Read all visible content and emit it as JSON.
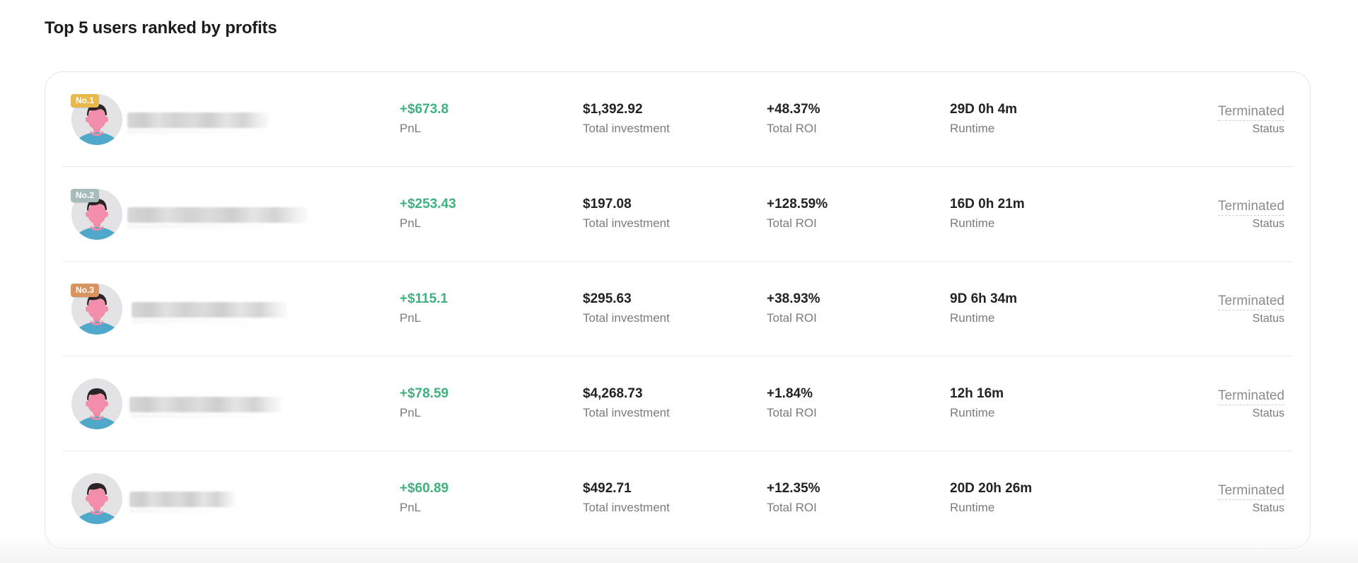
{
  "page": {
    "title": "Top 5 users ranked by profits"
  },
  "labels": {
    "pnl": "PnL",
    "investment": "Total investment",
    "roi": "Total ROI",
    "runtime": "Runtime",
    "status": "Status"
  },
  "colors": {
    "profit_green": "#3fb17f",
    "rank_gold": "#e9b94d",
    "rank_silver": "#a8bcbc",
    "rank_bronze": "#d8935e"
  },
  "users": [
    {
      "rank_badge": "No.1",
      "username_hidden": true,
      "pnl": "+$673.8",
      "investment": "$1,392.92",
      "roi": "+48.37%",
      "runtime": "29D 0h 4m",
      "status": "Terminated"
    },
    {
      "rank_badge": "No.2",
      "username_hidden": true,
      "pnl": "+$253.43",
      "investment": "$197.08",
      "roi": "+128.59%",
      "runtime": "16D 0h 21m",
      "status": "Terminated"
    },
    {
      "rank_badge": "No.3",
      "username_hidden": true,
      "pnl": "+$115.1",
      "investment": "$295.63",
      "roi": "+38.93%",
      "runtime": "9D 6h 34m",
      "status": "Terminated"
    },
    {
      "rank_badge": "",
      "username_hidden": true,
      "pnl": "+$78.59",
      "investment": "$4,268.73",
      "roi": "+1.84%",
      "runtime": "12h 16m",
      "status": "Terminated"
    },
    {
      "rank_badge": "",
      "username_hidden": true,
      "pnl": "+$60.89",
      "investment": "$492.71",
      "roi": "+12.35%",
      "runtime": "20D 20h 26m",
      "status": "Terminated"
    }
  ]
}
